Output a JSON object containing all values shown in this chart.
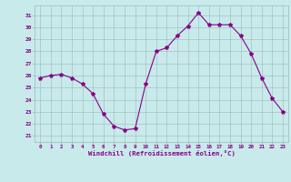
{
  "hours": [
    0,
    1,
    2,
    3,
    4,
    5,
    6,
    7,
    8,
    9,
    10,
    11,
    12,
    13,
    14,
    15,
    16,
    17,
    18,
    19,
    20,
    21,
    22,
    23
  ],
  "values": [
    25.8,
    26.0,
    26.1,
    25.8,
    25.3,
    24.5,
    22.8,
    21.8,
    21.5,
    21.6,
    25.3,
    28.0,
    28.3,
    29.3,
    30.1,
    31.2,
    30.2,
    30.2,
    30.2,
    29.3,
    27.8,
    25.8,
    24.1,
    23.0
  ],
  "line_color": "#880088",
  "marker": "*",
  "bg_color": "#c8eaea",
  "grid_color": "#99bbbb",
  "text_color": "#880088",
  "xlabel": "Windchill (Refroidissement éolien,°C)",
  "ylim": [
    20.5,
    31.8
  ],
  "yticks": [
    21,
    22,
    23,
    24,
    25,
    26,
    27,
    28,
    29,
    30,
    31
  ],
  "figsize": [
    3.2,
    2.0
  ],
  "dpi": 100
}
